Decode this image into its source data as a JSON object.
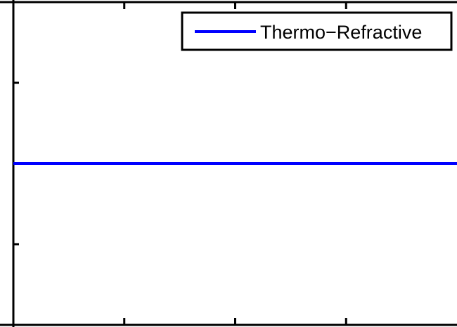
{
  "chart_data": {
    "type": "line",
    "title": "",
    "xlabel": "",
    "ylabel": "",
    "grid": false,
    "legend_position": "top-right",
    "series": [
      {
        "name": "Thermo−Refractive",
        "color": "#0000ff",
        "x": [
          0,
          0.25,
          0.5,
          0.75,
          1
        ],
        "y": [
          0.5,
          0.5,
          0.5,
          0.5,
          0.5
        ]
      }
    ],
    "xlim": [
      0,
      1
    ],
    "ylim": [
      0,
      1
    ]
  }
}
